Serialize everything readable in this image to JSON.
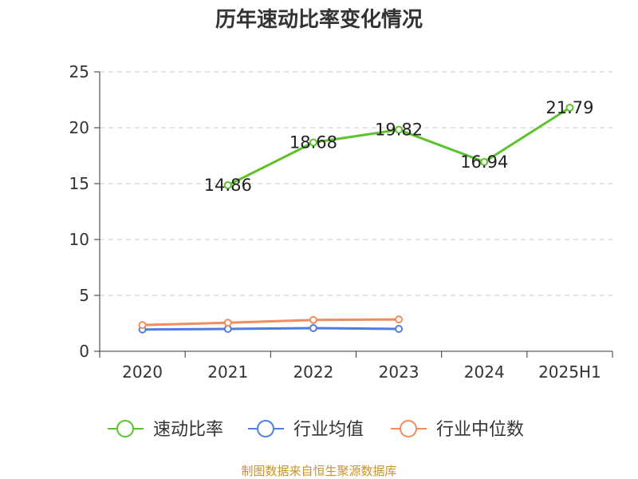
{
  "footer": {
    "source": "制图数据来自恒生聚源数据库"
  },
  "chart_data": {
    "type": "line",
    "title": "历年速动比率变化情况",
    "categories": [
      "2020",
      "2021",
      "2022",
      "2023",
      "2024",
      "2025H1"
    ],
    "ylim": [
      0,
      25
    ],
    "yticks": [
      0,
      5,
      10,
      15,
      20,
      25
    ],
    "grid": true,
    "legend_position": "bottom",
    "series": [
      {
        "name": "速动比率",
        "color": "#5cc22e",
        "values": [
          null,
          14.86,
          18.68,
          19.82,
          16.94,
          21.79
        ],
        "labels": [
          null,
          "14.86",
          "18.68",
          "19.82",
          "16.94",
          "21.79"
        ]
      },
      {
        "name": "行业均值",
        "color": "#4f7fde",
        "values": [
          1.95,
          2.0,
          2.07,
          2.0,
          null,
          null
        ]
      },
      {
        "name": "行业中位数",
        "color": "#f28c5c",
        "values": [
          2.35,
          2.55,
          2.8,
          2.85,
          null,
          null
        ]
      }
    ]
  }
}
